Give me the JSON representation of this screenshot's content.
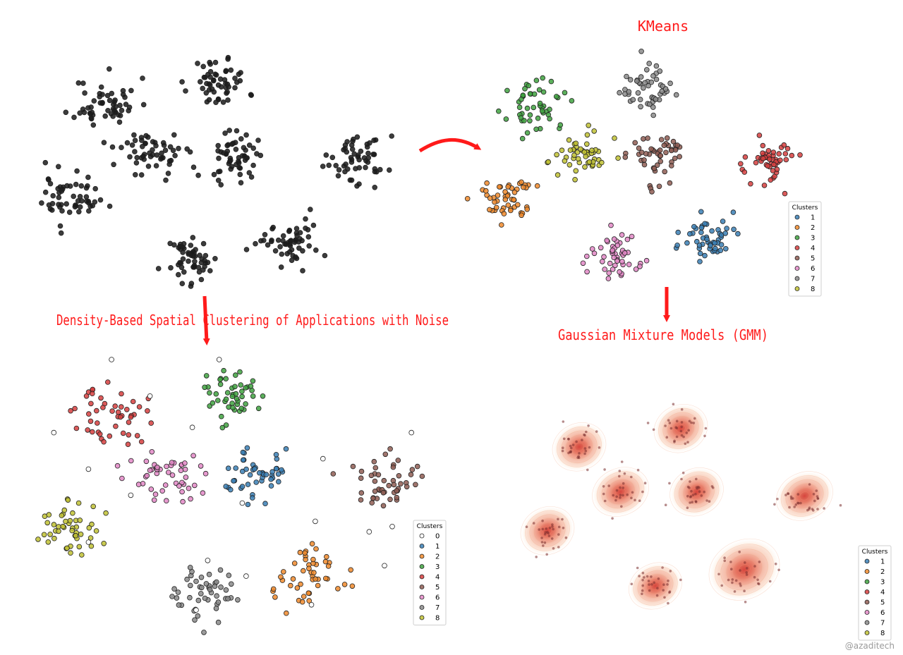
{
  "titles": {
    "kmeans": "KMeans",
    "dbscan": "Density-Based Spatial Clustering of Applications with Noise",
    "gmm": "Gaussian Mixture Models (GMM)"
  },
  "credit": "@azaditech",
  "legend": {
    "title": "Clusters",
    "kmeans_labels": [
      "1",
      "2",
      "3",
      "4",
      "5",
      "6",
      "7",
      "8"
    ],
    "dbscan_labels": [
      "0",
      "1",
      "2",
      "3",
      "4",
      "5",
      "6",
      "7",
      "8"
    ],
    "gmm_labels": [
      "1",
      "2",
      "3",
      "4",
      "5",
      "6",
      "7",
      "8"
    ]
  },
  "colors": {
    "0": "#ffffff",
    "1": "#3a7fb5",
    "2": "#f08a2c",
    "3": "#3fa23f",
    "4": "#d63e3e",
    "5": "#8f5d54",
    "6": "#e287c6",
    "7": "#8a8a8a",
    "8": "#c0c132",
    "raw": "#1a1a1a",
    "arrow": "#ff1a1a",
    "title": "#ff1a1a"
  },
  "chart_data": [
    {
      "type": "scatter",
      "title": "",
      "xlabel": "",
      "ylabel": "",
      "xlim": [
        0,
        100
      ],
      "ylim": [
        0,
        100
      ],
      "grid": false,
      "color": "raw",
      "blobs": [
        {
          "cx": 18,
          "cy": 78,
          "sx": 4.5,
          "sy": 5.5,
          "n": 55
        },
        {
          "cx": 50,
          "cy": 87,
          "sx": 4.2,
          "sy": 5.5,
          "n": 55
        },
        {
          "cx": 31,
          "cy": 56,
          "sx": 4.8,
          "sy": 5.5,
          "n": 55
        },
        {
          "cx": 55,
          "cy": 56,
          "sx": 4.0,
          "sy": 5.5,
          "n": 55
        },
        {
          "cx": 89,
          "cy": 54,
          "sx": 4.3,
          "sy": 5.5,
          "n": 55
        },
        {
          "cx": 8,
          "cy": 37,
          "sx": 4.0,
          "sy": 5.2,
          "n": 55
        },
        {
          "cx": 42,
          "cy": 10,
          "sx": 4.0,
          "sy": 5.2,
          "n": 55
        },
        {
          "cx": 70,
          "cy": 18,
          "sx": 4.6,
          "sy": 5.2,
          "n": 55
        }
      ]
    },
    {
      "type": "scatter",
      "title": "",
      "xlabel": "",
      "ylabel": "",
      "xlim": [
        0,
        100
      ],
      "ylim": [
        0,
        100
      ],
      "grid": false,
      "legend": "lower-right",
      "blobs": [
        {
          "cluster": 3,
          "cx": 18,
          "cy": 78,
          "sx": 4.5,
          "sy": 5.5,
          "n": 50
        },
        {
          "cluster": 7,
          "cx": 50,
          "cy": 87,
          "sx": 4.2,
          "sy": 5.5,
          "n": 50
        },
        {
          "cluster": 8,
          "cx": 31,
          "cy": 56,
          "sx": 4.8,
          "sy": 5.5,
          "n": 50
        },
        {
          "cluster": 5,
          "cx": 55,
          "cy": 56,
          "sx": 4.0,
          "sy": 5.5,
          "n": 50
        },
        {
          "cluster": 4,
          "cx": 89,
          "cy": 54,
          "sx": 4.3,
          "sy": 5.5,
          "n": 50
        },
        {
          "cluster": 2,
          "cx": 8,
          "cy": 37,
          "sx": 4.0,
          "sy": 5.2,
          "n": 50
        },
        {
          "cluster": 6,
          "cx": 42,
          "cy": 10,
          "sx": 4.0,
          "sy": 5.2,
          "n": 50
        },
        {
          "cluster": 1,
          "cx": 70,
          "cy": 18,
          "sx": 4.6,
          "sy": 5.2,
          "n": 50
        }
      ]
    },
    {
      "type": "scatter",
      "title": "",
      "xlabel": "",
      "ylabel": "",
      "xlim": [
        0,
        100
      ],
      "ylim": [
        0,
        100
      ],
      "grid": false,
      "legend": "lower-right",
      "blobs": [
        {
          "cluster": 4,
          "cx": 18,
          "cy": 78,
          "sx": 4.5,
          "sy": 5.5,
          "n": 48
        },
        {
          "cluster": 3,
          "cx": 50,
          "cy": 87,
          "sx": 4.2,
          "sy": 5.5,
          "n": 48
        },
        {
          "cluster": 6,
          "cx": 31,
          "cy": 56,
          "sx": 4.8,
          "sy": 5.5,
          "n": 48
        },
        {
          "cluster": 1,
          "cx": 55,
          "cy": 56,
          "sx": 4.0,
          "sy": 5.5,
          "n": 48
        },
        {
          "cluster": 5,
          "cx": 89,
          "cy": 54,
          "sx": 4.3,
          "sy": 5.5,
          "n": 48
        },
        {
          "cluster": 8,
          "cx": 8,
          "cy": 37,
          "sx": 4.0,
          "sy": 5.2,
          "n": 48
        },
        {
          "cluster": 7,
          "cx": 42,
          "cy": 10,
          "sx": 4.0,
          "sy": 5.2,
          "n": 48
        },
        {
          "cluster": 2,
          "cx": 70,
          "cy": 18,
          "sx": 4.6,
          "sy": 5.2,
          "n": 48
        }
      ],
      "noise": [
        [
          18,
          100
        ],
        [
          46,
          100
        ],
        [
          28,
          86
        ],
        [
          3,
          72
        ],
        [
          12,
          58
        ],
        [
          23,
          48
        ],
        [
          39,
          74
        ],
        [
          52,
          45
        ],
        [
          73,
          62
        ],
        [
          96,
          72
        ],
        [
          71,
          38
        ],
        [
          85,
          34
        ],
        [
          43,
          23
        ],
        [
          53,
          17
        ],
        [
          12,
          30
        ],
        [
          40,
          4
        ],
        [
          70,
          6
        ],
        [
          91,
          36
        ],
        [
          89,
          21
        ]
      ]
    },
    {
      "type": "heatmap",
      "title": "",
      "xlabel": "",
      "ylabel": "",
      "xlim": [
        0,
        100
      ],
      "ylim": [
        0,
        100
      ],
      "grid": false,
      "legend": "lower-right",
      "components": [
        {
          "cx": 18,
          "cy": 78,
          "sx": 7.5,
          "sy": 10,
          "n": 30
        },
        {
          "cx": 50,
          "cy": 87,
          "sx": 7.5,
          "sy": 10,
          "n": 30
        },
        {
          "cx": 31,
          "cy": 56,
          "sx": 8,
          "sy": 10,
          "n": 30
        },
        {
          "cx": 55,
          "cy": 56,
          "sx": 7.5,
          "sy": 10,
          "n": 30
        },
        {
          "cx": 89,
          "cy": 54,
          "sx": 8,
          "sy": 10,
          "n": 30
        },
        {
          "cx": 8,
          "cy": 37,
          "sx": 7.5,
          "sy": 10,
          "n": 30
        },
        {
          "cx": 42,
          "cy": 10,
          "sx": 7.5,
          "sy": 9.5,
          "n": 30
        },
        {
          "cx": 70,
          "cy": 18,
          "sx": 10,
          "sy": 12.5,
          "n": 30
        }
      ]
    }
  ]
}
